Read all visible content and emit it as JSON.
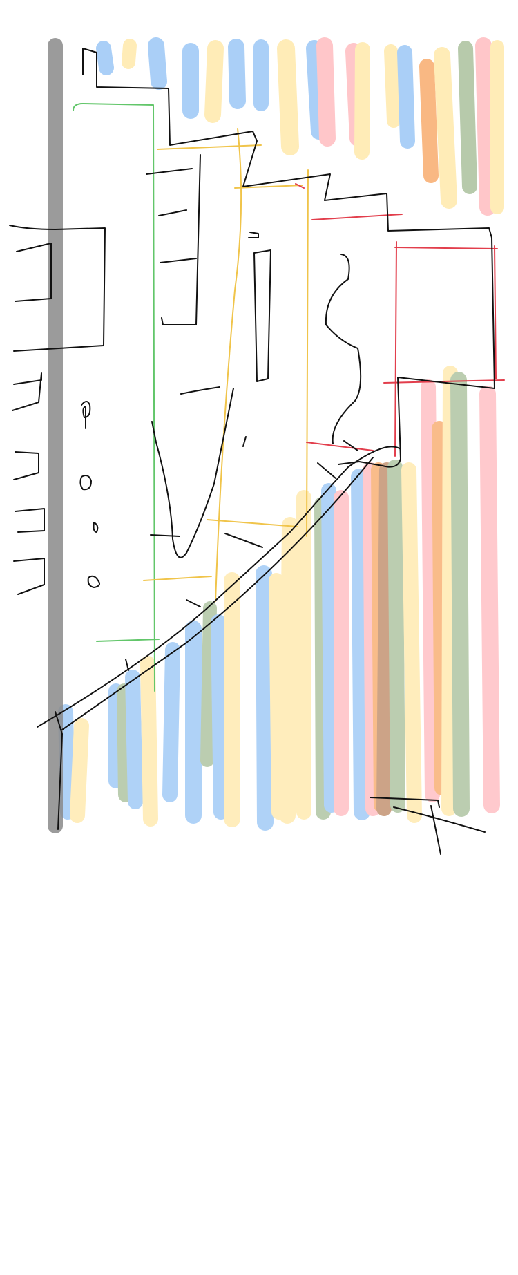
{
  "canvas": {
    "background": "#ffffff"
  },
  "colors": {
    "ink_black": "#111111",
    "ink_gray": "#8a8a8a",
    "marker_blue": "#8ec0f5",
    "marker_yellow": "#ffe6a0",
    "marker_red": "#ffb3b8",
    "marker_green": "#9fb98f",
    "marker_orange": "#f7a15a",
    "marker_brown": "#b77d55",
    "pen_green": "#62c66a",
    "pen_yellow": "#f0c44a",
    "pen_red": "#e23e4c"
  }
}
